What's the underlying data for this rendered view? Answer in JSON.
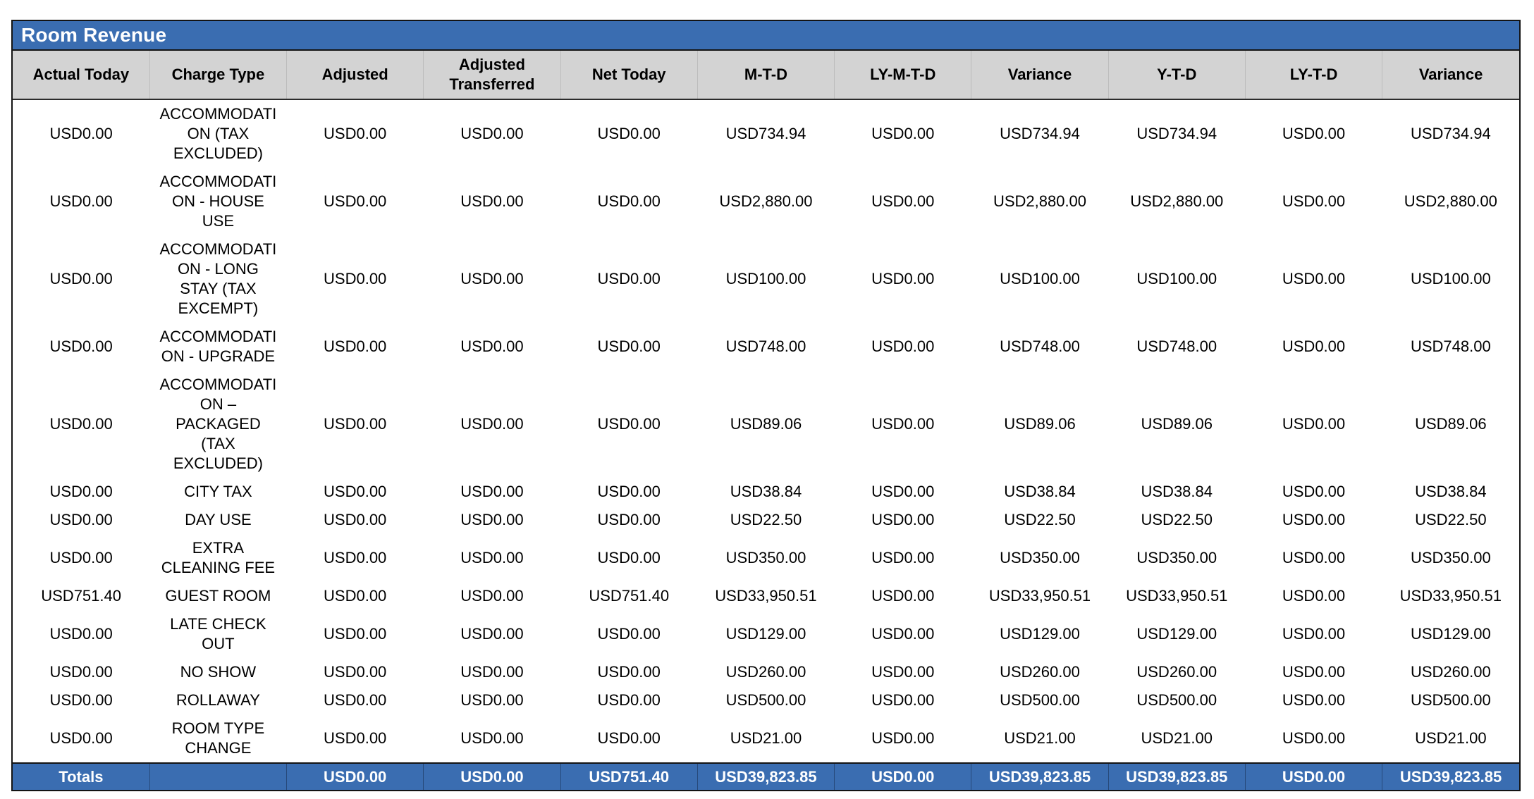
{
  "report": {
    "title": "Room Revenue",
    "columns": [
      "Actual Today",
      "Charge Type",
      "Adjusted",
      "Adjusted Transferred",
      "Net Today",
      "M-T-D",
      "LY-M-T-D",
      "Variance",
      "Y-T-D",
      "LY-T-D",
      "Variance"
    ],
    "rows": [
      [
        "USD0.00",
        "ACCOMMODATION (TAX EXCLUDED)",
        "USD0.00",
        "USD0.00",
        "USD0.00",
        "USD734.94",
        "USD0.00",
        "USD734.94",
        "USD734.94",
        "USD0.00",
        "USD734.94"
      ],
      [
        "USD0.00",
        "ACCOMMODATION - HOUSE USE",
        "USD0.00",
        "USD0.00",
        "USD0.00",
        "USD2,880.00",
        "USD0.00",
        "USD2,880.00",
        "USD2,880.00",
        "USD0.00",
        "USD2,880.00"
      ],
      [
        "USD0.00",
        "ACCOMMODATION - LONG STAY (TAX EXCEMPT)",
        "USD0.00",
        "USD0.00",
        "USD0.00",
        "USD100.00",
        "USD0.00",
        "USD100.00",
        "USD100.00",
        "USD0.00",
        "USD100.00"
      ],
      [
        "USD0.00",
        "ACCOMMODATION - UPGRADE",
        "USD0.00",
        "USD0.00",
        "USD0.00",
        "USD748.00",
        "USD0.00",
        "USD748.00",
        "USD748.00",
        "USD0.00",
        "USD748.00"
      ],
      [
        "USD0.00",
        "ACCOMMODATION – PACKAGED (TAX EXCLUDED)",
        "USD0.00",
        "USD0.00",
        "USD0.00",
        "USD89.06",
        "USD0.00",
        "USD89.06",
        "USD89.06",
        "USD0.00",
        "USD89.06"
      ],
      [
        "USD0.00",
        "CITY TAX",
        "USD0.00",
        "USD0.00",
        "USD0.00",
        "USD38.84",
        "USD0.00",
        "USD38.84",
        "USD38.84",
        "USD0.00",
        "USD38.84"
      ],
      [
        "USD0.00",
        "DAY USE",
        "USD0.00",
        "USD0.00",
        "USD0.00",
        "USD22.50",
        "USD0.00",
        "USD22.50",
        "USD22.50",
        "USD0.00",
        "USD22.50"
      ],
      [
        "USD0.00",
        "EXTRA CLEANING FEE",
        "USD0.00",
        "USD0.00",
        "USD0.00",
        "USD350.00",
        "USD0.00",
        "USD350.00",
        "USD350.00",
        "USD0.00",
        "USD350.00"
      ],
      [
        "USD751.40",
        "GUEST ROOM",
        "USD0.00",
        "USD0.00",
        "USD751.40",
        "USD33,950.51",
        "USD0.00",
        "USD33,950.51",
        "USD33,950.51",
        "USD0.00",
        "USD33,950.51"
      ],
      [
        "USD0.00",
        "LATE CHECK OUT",
        "USD0.00",
        "USD0.00",
        "USD0.00",
        "USD129.00",
        "USD0.00",
        "USD129.00",
        "USD129.00",
        "USD0.00",
        "USD129.00"
      ],
      [
        "USD0.00",
        "NO SHOW",
        "USD0.00",
        "USD0.00",
        "USD0.00",
        "USD260.00",
        "USD0.00",
        "USD260.00",
        "USD260.00",
        "USD0.00",
        "USD260.00"
      ],
      [
        "USD0.00",
        "ROLLAWAY",
        "USD0.00",
        "USD0.00",
        "USD0.00",
        "USD500.00",
        "USD0.00",
        "USD500.00",
        "USD500.00",
        "USD0.00",
        "USD500.00"
      ],
      [
        "USD0.00",
        "ROOM TYPE CHANGE",
        "USD0.00",
        "USD0.00",
        "USD0.00",
        "USD21.00",
        "USD0.00",
        "USD21.00",
        "USD21.00",
        "USD0.00",
        "USD21.00"
      ]
    ],
    "totals": [
      "Totals",
      "",
      "USD0.00",
      "USD0.00",
      "USD751.40",
      "USD39,823.85",
      "USD0.00",
      "USD39,823.85",
      "USD39,823.85",
      "USD0.00",
      "USD39,823.85"
    ],
    "colors": {
      "accent_blue": "#3a6db1",
      "header_gray": "#d3d3d3",
      "border_dark": "#141414",
      "text_black": "#000000",
      "totals_text": "#ffffff"
    }
  }
}
